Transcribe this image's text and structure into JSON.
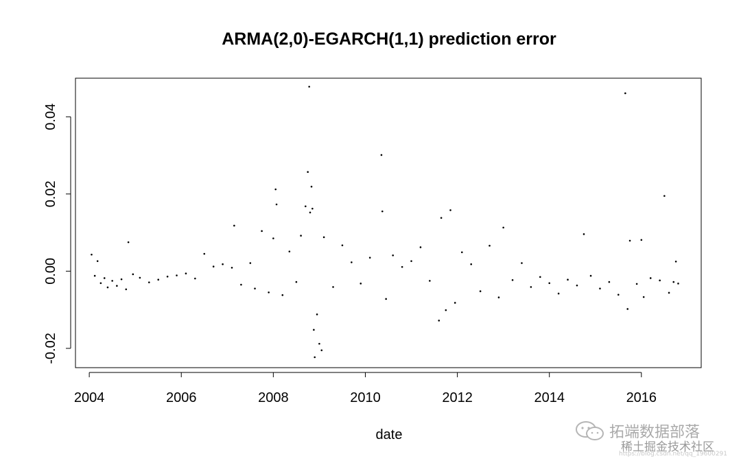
{
  "chart_data": {
    "type": "scatter",
    "title": "ARMA(2,0)-EGARCH(1,1) prediction error",
    "xlabel": "date",
    "ylabel": "",
    "xlim": [
      2003.7,
      2017.3
    ],
    "ylim": [
      -0.025,
      0.05
    ],
    "x_ticks": [
      2004,
      2006,
      2008,
      2010,
      2012,
      2014,
      2016
    ],
    "x_tick_labels": [
      "2004",
      "2006",
      "2008",
      "2010",
      "2012",
      "2014",
      "2016"
    ],
    "y_ticks": [
      -0.02,
      0.0,
      0.02,
      0.04
    ],
    "y_tick_labels": [
      "-0.02",
      "0.00",
      "0.02",
      "0.04"
    ],
    "grid": false,
    "legend": "none",
    "point_color": "#000000",
    "series": [
      {
        "points": [
          [
            2004.05,
            0.0043
          ],
          [
            2004.12,
            -0.0012
          ],
          [
            2004.18,
            0.0026
          ],
          [
            2004.25,
            -0.0031
          ],
          [
            2004.33,
            -0.0018
          ],
          [
            2004.4,
            -0.0042
          ],
          [
            2004.5,
            -0.0025
          ],
          [
            2004.6,
            -0.0038
          ],
          [
            2004.7,
            -0.0021
          ],
          [
            2004.8,
            -0.0047
          ],
          [
            2004.85,
            0.0075
          ],
          [
            2004.95,
            -0.0008
          ],
          [
            2005.1,
            -0.0017
          ],
          [
            2005.3,
            -0.0029
          ],
          [
            2005.5,
            -0.0022
          ],
          [
            2005.7,
            -0.0014
          ],
          [
            2005.9,
            -0.0011
          ],
          [
            2006.1,
            -0.0006
          ],
          [
            2006.3,
            -0.0019
          ],
          [
            2006.5,
            0.0045
          ],
          [
            2006.7,
            0.0012
          ],
          [
            2006.9,
            0.0018
          ],
          [
            2007.1,
            0.0009
          ],
          [
            2007.15,
            0.0118
          ],
          [
            2007.3,
            -0.0035
          ],
          [
            2007.5,
            0.0021
          ],
          [
            2007.6,
            -0.0045
          ],
          [
            2007.75,
            0.0104
          ],
          [
            2007.9,
            -0.0055
          ],
          [
            2008.0,
            0.0085
          ],
          [
            2008.05,
            0.0212
          ],
          [
            2008.07,
            0.0173
          ],
          [
            2008.2,
            -0.0062
          ],
          [
            2008.35,
            0.0051
          ],
          [
            2008.5,
            -0.0028
          ],
          [
            2008.6,
            0.0092
          ],
          [
            2008.7,
            0.0168
          ],
          [
            2008.75,
            0.0257
          ],
          [
            2008.78,
            0.0478
          ],
          [
            2008.8,
            0.0152
          ],
          [
            2008.83,
            0.0219
          ],
          [
            2008.85,
            0.0162
          ],
          [
            2008.88,
            -0.0152
          ],
          [
            2008.9,
            -0.0223
          ],
          [
            2008.95,
            -0.0112
          ],
          [
            2009.0,
            -0.0188
          ],
          [
            2009.05,
            -0.0205
          ],
          [
            2009.1,
            0.0088
          ],
          [
            2009.3,
            -0.0041
          ],
          [
            2009.5,
            0.0067
          ],
          [
            2009.7,
            0.0023
          ],
          [
            2009.9,
            -0.0032
          ],
          [
            2010.1,
            0.0035
          ],
          [
            2010.35,
            0.0301
          ],
          [
            2010.37,
            0.0155
          ],
          [
            2010.45,
            -0.0072
          ],
          [
            2010.6,
            0.0041
          ],
          [
            2010.8,
            0.0011
          ],
          [
            2011.0,
            0.0026
          ],
          [
            2011.2,
            0.0062
          ],
          [
            2011.4,
            -0.0025
          ],
          [
            2011.6,
            -0.0128
          ],
          [
            2011.65,
            0.0138
          ],
          [
            2011.75,
            -0.0101
          ],
          [
            2011.85,
            0.0158
          ],
          [
            2011.95,
            -0.0082
          ],
          [
            2012.1,
            0.0049
          ],
          [
            2012.3,
            0.0018
          ],
          [
            2012.5,
            -0.0052
          ],
          [
            2012.7,
            0.0066
          ],
          [
            2012.9,
            -0.0068
          ],
          [
            2013.0,
            0.0113
          ],
          [
            2013.2,
            -0.0023
          ],
          [
            2013.4,
            0.0021
          ],
          [
            2013.6,
            -0.0041
          ],
          [
            2013.8,
            -0.0015
          ],
          [
            2014.0,
            -0.0031
          ],
          [
            2014.2,
            -0.0058
          ],
          [
            2014.4,
            -0.0022
          ],
          [
            2014.6,
            -0.0037
          ],
          [
            2014.75,
            0.0096
          ],
          [
            2014.9,
            -0.0012
          ],
          [
            2015.1,
            -0.0045
          ],
          [
            2015.3,
            -0.0028
          ],
          [
            2015.5,
            -0.0061
          ],
          [
            2015.65,
            0.0461
          ],
          [
            2015.7,
            -0.0098
          ],
          [
            2015.75,
            0.0079
          ],
          [
            2015.9,
            -0.0033
          ],
          [
            2016.0,
            0.0081
          ],
          [
            2016.05,
            -0.0067
          ],
          [
            2016.2,
            -0.0018
          ],
          [
            2016.4,
            -0.0024
          ],
          [
            2016.5,
            0.0195
          ],
          [
            2016.6,
            -0.0056
          ],
          [
            2016.7,
            -0.0028
          ],
          [
            2016.75,
            0.0025
          ],
          [
            2016.8,
            -0.0032
          ]
        ]
      }
    ]
  },
  "watermark": {
    "main": "拓端数据部落",
    "sub": "稀土掘金技术社区",
    "url": "https://blog.csdn.net/qq_19600291",
    "logo_icon": "wechat-logo-icon"
  }
}
